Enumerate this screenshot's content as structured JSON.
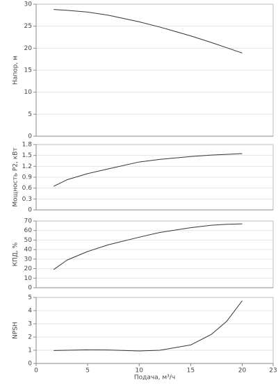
{
  "chart_data": [
    {
      "type": "line",
      "ylabel": "Напор, м",
      "color": "#333333",
      "x": [
        1.7,
        3,
        5,
        7,
        10,
        12,
        15,
        17,
        18.5,
        20
      ],
      "series": [
        {
          "values": [
            28.8,
            28.6,
            28.2,
            27.5,
            26.0,
            24.8,
            22.8,
            21.3,
            20.1,
            18.9
          ]
        }
      ],
      "xlim": [
        0,
        23
      ],
      "ylim": [
        0,
        30
      ],
      "yticks": [
        0,
        5,
        10,
        15,
        20,
        25,
        30
      ],
      "grid": true
    },
    {
      "type": "line",
      "ylabel": "Мощность P2, кВт",
      "color": "#333333",
      "x": [
        1.7,
        3,
        5,
        7,
        10,
        12,
        15,
        17,
        18.5,
        20
      ],
      "series": [
        {
          "values": [
            0.65,
            0.83,
            1.0,
            1.13,
            1.32,
            1.39,
            1.47,
            1.51,
            1.53,
            1.55
          ]
        }
      ],
      "xlim": [
        0,
        23
      ],
      "ylim": [
        0,
        1.8
      ],
      "yticks": [
        0,
        0.3,
        0.6,
        0.9,
        1.2,
        1.5,
        1.8
      ],
      "grid": true
    },
    {
      "type": "line",
      "ylabel": "КПД, %",
      "color": "#333333",
      "x": [
        1.7,
        3,
        5,
        7,
        10,
        12,
        15,
        17,
        18.5,
        20
      ],
      "series": [
        {
          "values": [
            19,
            29,
            38,
            45,
            53,
            58,
            63,
            65.5,
            66.5,
            67
          ]
        }
      ],
      "xlim": [
        0,
        23
      ],
      "ylim": [
        0,
        70
      ],
      "yticks": [
        0,
        10,
        20,
        30,
        40,
        50,
        60,
        70
      ],
      "grid": true
    },
    {
      "type": "line",
      "ylabel": "NPSH",
      "xlabel": "Подача, м³/ч",
      "color": "#333333",
      "x": [
        1.7,
        3,
        5,
        7,
        10,
        12,
        15,
        17,
        18.5,
        20
      ],
      "series": [
        {
          "values": [
            0.98,
            1.0,
            1.03,
            1.02,
            0.95,
            1.0,
            1.4,
            2.2,
            3.2,
            4.75
          ]
        }
      ],
      "xlim": [
        0,
        23
      ],
      "ylim": [
        0,
        5
      ],
      "yticks": [
        0,
        1,
        2,
        3,
        4,
        5
      ],
      "xticks": [
        0,
        5,
        10,
        15,
        20,
        23
      ],
      "grid": true
    }
  ]
}
